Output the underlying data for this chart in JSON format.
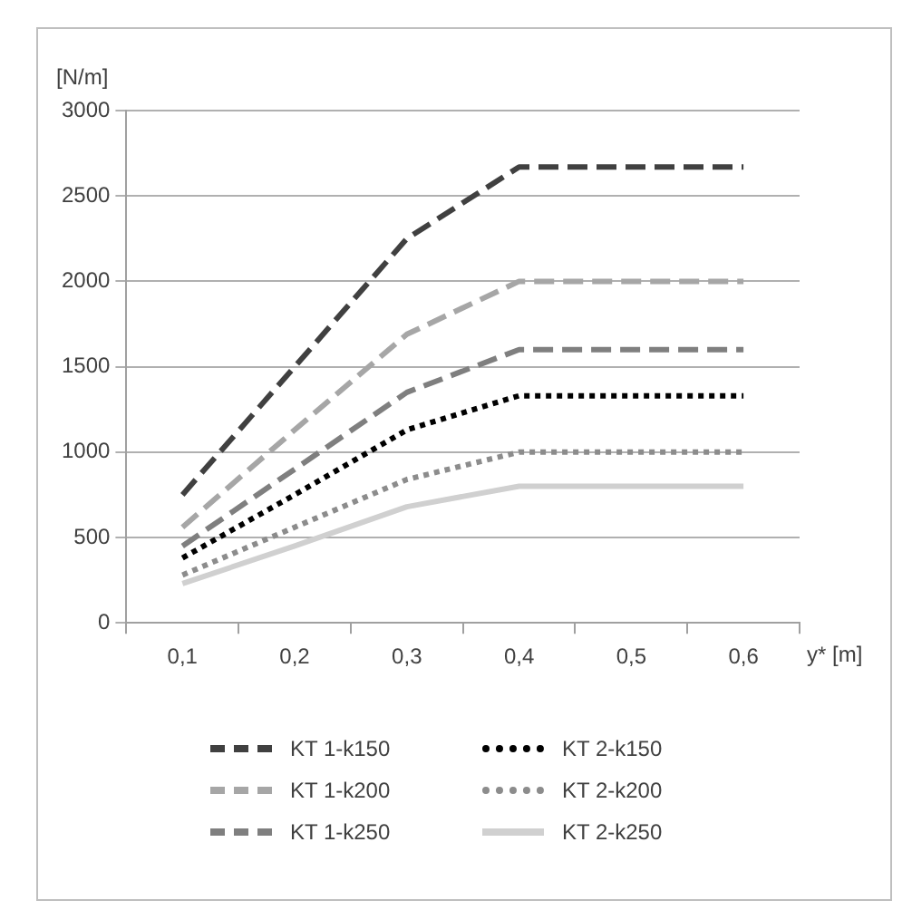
{
  "chart_data": {
    "type": "line",
    "xlabel": "y* [m]",
    "ylabel": "[N/m]",
    "categories": [
      "0,1",
      "0,2",
      "0,3",
      "0,4",
      "0,5",
      "0,6"
    ],
    "ylim": [
      0,
      3000
    ],
    "yticks": [
      0,
      500,
      1000,
      1500,
      2000,
      2500,
      3000
    ],
    "grid": "y",
    "legend": "bottom",
    "marker": "none",
    "series": [
      {
        "name": "KT 1-k150",
        "color": "#404040",
        "line_style": "dashed",
        "values": [
          750,
          1500,
          2250,
          2670,
          2670,
          2670
        ]
      },
      {
        "name": "KT 1-k200",
        "color": "#a6a6a6",
        "line_style": "dashed",
        "values": [
          560,
          1130,
          1690,
          2000,
          2000,
          2000
        ]
      },
      {
        "name": "KT 1-k250",
        "color": "#7f7f7f",
        "line_style": "dashed",
        "values": [
          450,
          900,
          1350,
          1600,
          1600,
          1600
        ]
      },
      {
        "name": "KT 2-k150",
        "color": "#000000",
        "line_style": "dotted",
        "values": [
          380,
          750,
          1130,
          1330,
          1330,
          1330
        ]
      },
      {
        "name": "KT 2-k200",
        "color": "#8c8c8c",
        "line_style": "dotted",
        "values": [
          280,
          560,
          840,
          1000,
          1000,
          1000
        ]
      },
      {
        "name": "KT 2-k250",
        "color": "#d0d0d0",
        "line_style": "solid",
        "values": [
          230,
          450,
          680,
          800,
          800,
          800
        ]
      }
    ]
  }
}
